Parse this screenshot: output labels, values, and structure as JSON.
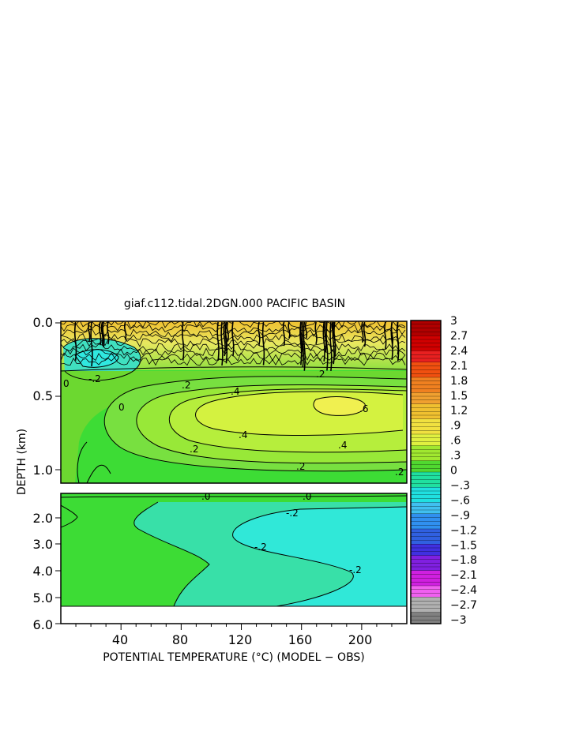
{
  "chart_data": {
    "type": "heatmap",
    "title": "giaf.c112.tidal.2DGN.000 PACIFIC BASIN",
    "xlabel": "POTENTIAL TEMPERATURE (°C) (MODEL − OBS)",
    "ylabel": "DEPTH (km)",
    "x_ticks": [
      40,
      80,
      120,
      160,
      200
    ],
    "upper_panel": {
      "y_range": [
        0.0,
        1.15
      ],
      "y_ticks": [
        "0.0",
        "0.5",
        "1.0"
      ],
      "contour_labels": [
        "-.2",
        ".2",
        ".4",
        ".6",
        ".4",
        ".2",
        ".4",
        ".2",
        ".2",
        ".2",
        "0",
        "0"
      ]
    },
    "lower_panel": {
      "y_range": [
        1.15,
        6.0
      ],
      "y_ticks": [
        "2.0",
        "3.0",
        "4.0",
        "5.0",
        "6.0"
      ],
      "contour_labels": [
        ".0",
        ".0",
        "-.2",
        "-.2",
        "-.2"
      ]
    },
    "colorbar": {
      "range": [
        -3,
        3
      ],
      "tick_labels": [
        "3",
        "2.7",
        "2.4",
        "2.1",
        "1.8",
        "1.5",
        "1.2",
        ".9",
        ".6",
        ".3",
        "0",
        "−.3",
        "−.6",
        "−.9",
        "−1.2",
        "−1.5",
        "−1.8",
        "−2.1",
        "−2.4",
        "−2.7",
        "−3"
      ],
      "colors": [
        "#b00000",
        "#d00000",
        "#e82020",
        "#f05010",
        "#f08020",
        "#f0a030",
        "#f0c030",
        "#f0e040",
        "#e0f040",
        "#a0e830",
        "#50d830",
        "#20e0a0",
        "#20e0e0",
        "#40c0f0",
        "#3090f0",
        "#3060e0",
        "#4030e0",
        "#8020e0",
        "#d020e0",
        "#f060f0",
        "#b0b0b0",
        "#808080"
      ]
    },
    "grid": false
  }
}
